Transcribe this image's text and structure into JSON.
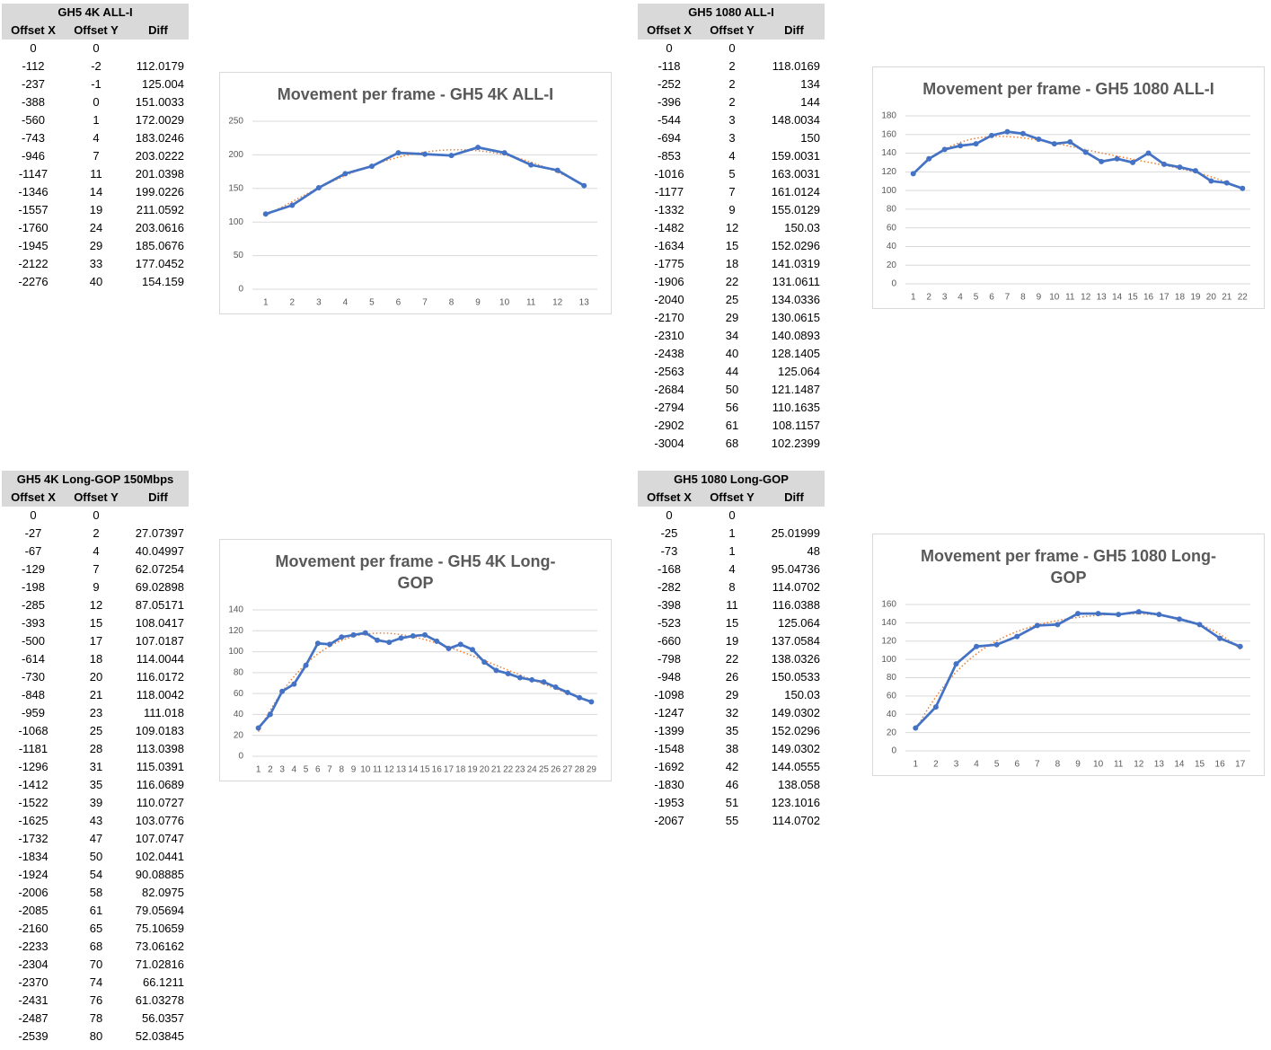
{
  "tables": [
    {
      "title": "GH5 4K ALL-I",
      "columns": [
        "Offset X",
        "Offset Y",
        "Diff"
      ],
      "rows": [
        [
          0,
          0
        ],
        [
          -112,
          -2,
          112.0179
        ],
        [
          -237,
          -1,
          125.004
        ],
        [
          -388,
          0,
          151.0033
        ],
        [
          -560,
          1,
          172.0029
        ],
        [
          -743,
          4,
          183.0246
        ],
        [
          -946,
          7,
          203.0222
        ],
        [
          -1147,
          11,
          201.0398
        ],
        [
          -1346,
          14,
          199.0226
        ],
        [
          -1557,
          19,
          211.0592
        ],
        [
          -1760,
          24,
          203.0616
        ],
        [
          -1945,
          29,
          185.0676
        ],
        [
          -2122,
          33,
          177.0452
        ],
        [
          -2276,
          40,
          154.159
        ]
      ]
    },
    {
      "title": "GH5 1080 ALL-I",
      "columns": [
        "Offset X",
        "Offset Y",
        "Diff"
      ],
      "rows": [
        [
          0,
          0
        ],
        [
          -118,
          2,
          118.0169
        ],
        [
          -252,
          2,
          134
        ],
        [
          -396,
          2,
          144
        ],
        [
          -544,
          3,
          148.0034
        ],
        [
          -694,
          3,
          150
        ],
        [
          -853,
          4,
          159.0031
        ],
        [
          -1016,
          5,
          163.0031
        ],
        [
          -1177,
          7,
          161.0124
        ],
        [
          -1332,
          9,
          155.0129
        ],
        [
          -1482,
          12,
          150.03
        ],
        [
          -1634,
          15,
          152.0296
        ],
        [
          -1775,
          18,
          141.0319
        ],
        [
          -1906,
          22,
          131.0611
        ],
        [
          -2040,
          25,
          134.0336
        ],
        [
          -2170,
          29,
          130.0615
        ],
        [
          -2310,
          34,
          140.0893
        ],
        [
          -2438,
          40,
          128.1405
        ],
        [
          -2563,
          44,
          125.064
        ],
        [
          -2684,
          50,
          121.1487
        ],
        [
          -2794,
          56,
          110.1635
        ],
        [
          -2902,
          61,
          108.1157
        ],
        [
          -3004,
          68,
          102.2399
        ]
      ]
    },
    {
      "title": "GH5 4K Long-GOP 150Mbps",
      "columns": [
        "Offset X",
        "Offset Y",
        "Diff"
      ],
      "rows": [
        [
          0,
          0
        ],
        [
          -27,
          2,
          27.07397
        ],
        [
          -67,
          4,
          40.04997
        ],
        [
          -129,
          7,
          62.07254
        ],
        [
          -198,
          9,
          69.02898
        ],
        [
          -285,
          12,
          87.05171
        ],
        [
          -393,
          15,
          108.0417
        ],
        [
          -500,
          17,
          107.0187
        ],
        [
          -614,
          18,
          114.0044
        ],
        [
          -730,
          20,
          116.0172
        ],
        [
          -848,
          21,
          118.0042
        ],
        [
          -959,
          23,
          111.018
        ],
        [
          -1068,
          25,
          109.0183
        ],
        [
          -1181,
          28,
          113.0398
        ],
        [
          -1296,
          31,
          115.0391
        ],
        [
          -1412,
          35,
          116.0689
        ],
        [
          -1522,
          39,
          110.0727
        ],
        [
          -1625,
          43,
          103.0776
        ],
        [
          -1732,
          47,
          107.0747
        ],
        [
          -1834,
          50,
          102.0441
        ],
        [
          -1924,
          54,
          90.08885
        ],
        [
          -2006,
          58,
          82.0975
        ],
        [
          -2085,
          61,
          79.05694
        ],
        [
          -2160,
          65,
          75.10659
        ],
        [
          -2233,
          68,
          73.06162
        ],
        [
          -2304,
          70,
          71.02816
        ],
        [
          -2370,
          74,
          66.1211
        ],
        [
          -2431,
          76,
          61.03278
        ],
        [
          -2487,
          78,
          56.0357
        ],
        [
          -2539,
          80,
          52.03845
        ]
      ]
    },
    {
      "title": "GH5 1080 Long-GOP",
      "columns": [
        "Offset X",
        "Offset Y",
        "Diff"
      ],
      "rows": [
        [
          0,
          0
        ],
        [
          -25,
          1,
          25.01999
        ],
        [
          -73,
          1,
          48
        ],
        [
          -168,
          4,
          95.04736
        ],
        [
          -282,
          8,
          114.0702
        ],
        [
          -398,
          11,
          116.0388
        ],
        [
          -523,
          15,
          125.064
        ],
        [
          -660,
          19,
          137.0584
        ],
        [
          -798,
          22,
          138.0326
        ],
        [
          -948,
          26,
          150.0533
        ],
        [
          -1098,
          29,
          150.03
        ],
        [
          -1247,
          32,
          149.0302
        ],
        [
          -1399,
          35,
          152.0296
        ],
        [
          -1548,
          38,
          149.0302
        ],
        [
          -1692,
          42,
          144.0555
        ],
        [
          -1830,
          46,
          138.058
        ],
        [
          -1953,
          51,
          123.1016
        ],
        [
          -2067,
          55,
          114.0702
        ]
      ]
    }
  ],
  "chart_data": [
    {
      "type": "line",
      "title": "Movement per frame - GH5 4K ALL-I",
      "categories": [
        1,
        2,
        3,
        4,
        5,
        6,
        7,
        8,
        9,
        10,
        11,
        12,
        13
      ],
      "values": [
        112.0179,
        125.004,
        151.0033,
        172.0029,
        183.0246,
        203.0222,
        201.0398,
        199.0226,
        211.0592,
        203.0616,
        185.0676,
        177.0452,
        154.159
      ],
      "color": "#4472c4",
      "ylim": [
        0,
        250
      ],
      "yticks": [
        0,
        50,
        100,
        150,
        200,
        250
      ],
      "grid": true,
      "trendline": {
        "kind": "polynomial",
        "order": 4,
        "color": "#ed7d31"
      }
    },
    {
      "type": "line",
      "title": "Movement per frame - GH5 1080 ALL-I",
      "categories": [
        1,
        2,
        3,
        4,
        5,
        6,
        7,
        8,
        9,
        10,
        11,
        12,
        13,
        14,
        15,
        16,
        17,
        18,
        19,
        20,
        21,
        22
      ],
      "values": [
        118.0169,
        134,
        144,
        148.0034,
        150,
        159.0031,
        163.0031,
        161.0124,
        155.0129,
        150.03,
        152.0296,
        141.0319,
        131.0611,
        134.0336,
        130.0615,
        140.0893,
        128.1405,
        125.064,
        121.1487,
        110.1635,
        108.1157,
        102.2399
      ],
      "color": "#4472c4",
      "ylim": [
        0,
        180
      ],
      "yticks": [
        0,
        20,
        40,
        60,
        80,
        100,
        120,
        140,
        160,
        180
      ],
      "grid": true,
      "trendline": {
        "kind": "polynomial",
        "order": 4,
        "color": "#ed7d31"
      }
    },
    {
      "type": "line",
      "title": "Movement per frame - GH5 4K Long-GOP",
      "categories": [
        1,
        2,
        3,
        4,
        5,
        6,
        7,
        8,
        9,
        10,
        11,
        12,
        13,
        14,
        15,
        16,
        17,
        18,
        19,
        20,
        21,
        22,
        23,
        24,
        25,
        26,
        27,
        28,
        29
      ],
      "values": [
        27.07397,
        40.04997,
        62.07254,
        69.02898,
        87.05171,
        108.0417,
        107.0187,
        114.0044,
        116.0172,
        118.0042,
        111.018,
        109.0183,
        113.0398,
        115.0391,
        116.0689,
        110.0727,
        103.0776,
        107.0747,
        102.0441,
        90.08885,
        82.0975,
        79.05694,
        75.10659,
        73.06162,
        71.02816,
        66.1211,
        61.03278,
        56.0357,
        52.03845
      ],
      "color": "#4472c4",
      "ylim": [
        0,
        140
      ],
      "yticks": [
        0,
        20,
        40,
        60,
        80,
        100,
        120,
        140
      ],
      "grid": true,
      "trendline": {
        "kind": "polynomial",
        "order": 4,
        "color": "#ed7d31"
      }
    },
    {
      "type": "line",
      "title": "Movement per frame - GH5 1080 Long-GOP",
      "categories": [
        1,
        2,
        3,
        4,
        5,
        6,
        7,
        8,
        9,
        10,
        11,
        12,
        13,
        14,
        15,
        16,
        17
      ],
      "values": [
        25.01999,
        48,
        95.04736,
        114.0702,
        116.0388,
        125.064,
        137.0584,
        138.0326,
        150.0533,
        150.03,
        149.0302,
        152.0296,
        149.0302,
        144.0555,
        138.058,
        123.1016,
        114.0702
      ],
      "color": "#4472c4",
      "ylim": [
        0,
        160
      ],
      "yticks": [
        0,
        20,
        40,
        60,
        80,
        100,
        120,
        140,
        160
      ],
      "grid": true,
      "trendline": {
        "kind": "polynomial",
        "order": 4,
        "color": "#ed7d31"
      }
    }
  ]
}
